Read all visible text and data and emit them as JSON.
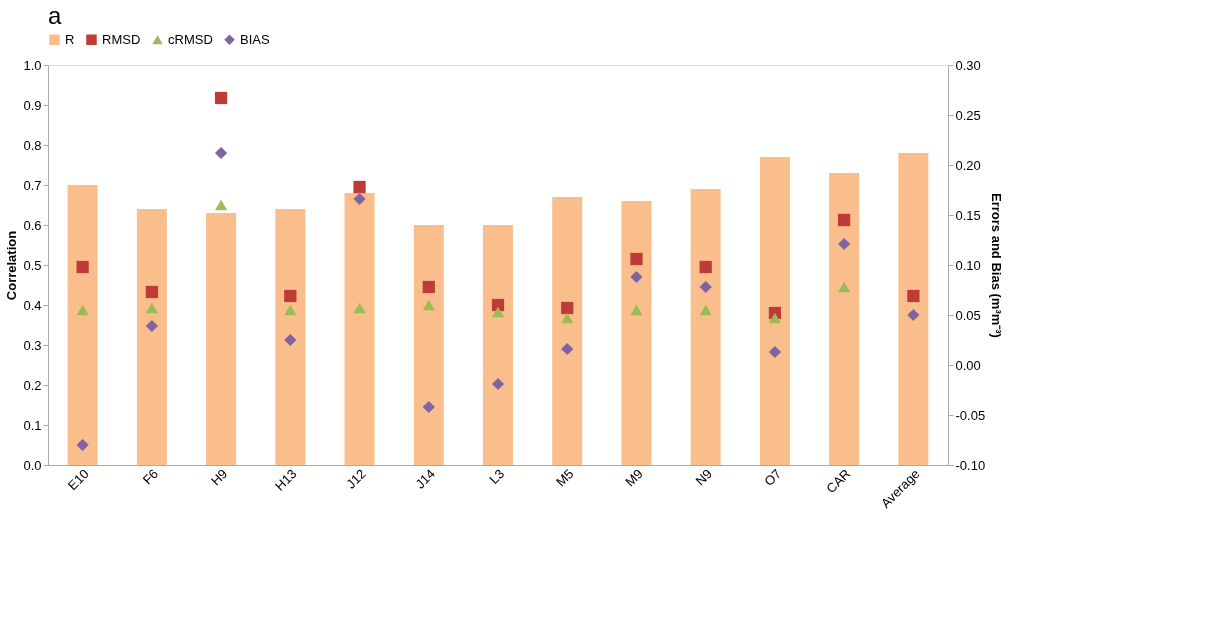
{
  "chart_data": {
    "type": "bar",
    "title": "a",
    "ylabel": "Correlation",
    "y2label": "Errors and Bias (m³m⁻³)",
    "categories": [
      "E10",
      "F6",
      "H9",
      "H13",
      "J12",
      "J14",
      "L3",
      "M5",
      "M9",
      "N9",
      "O7",
      "CAR",
      "Average"
    ],
    "series": [
      {
        "name": "R",
        "color": "#f9be8c",
        "values": [
          0.7,
          0.64,
          0.63,
          0.64,
          0.68,
          0.6,
          0.6,
          0.67,
          0.66,
          0.69,
          0.77,
          0.73,
          0.78
        ]
      },
      {
        "name": "RMSD",
        "type": "scatter",
        "axis": "y2",
        "marker": "square",
        "color": "#be3b37",
        "values": [
          0.098,
          0.073,
          0.267,
          0.069,
          0.178,
          0.078,
          0.06,
          0.057,
          0.106,
          0.098,
          0.052,
          0.145,
          0.069
        ]
      },
      {
        "name": "cRMSD",
        "type": "scatter",
        "axis": "y2",
        "marker": "triangle",
        "color": "#9bbb59",
        "values": [
          0.055,
          0.057,
          0.16,
          0.055,
          0.057,
          0.06,
          0.053,
          0.047,
          0.055,
          0.055,
          0.047,
          0.078,
          null
        ]
      },
      {
        "name": "BIAS",
        "type": "scatter",
        "axis": "y2",
        "marker": "diamond",
        "color": "#8064a2",
        "values": [
          -0.08,
          0.039,
          0.212,
          0.025,
          0.166,
          -0.042,
          -0.019,
          0.016,
          0.088,
          0.078,
          0.013,
          0.121,
          0.05
        ]
      }
    ],
    "ylim": [
      0,
      1
    ],
    "yticks": [
      {
        "value": 0,
        "label": "0.0"
      },
      0.1,
      0.2,
      0.3,
      0.4,
      0.5,
      0.6,
      0.7,
      0.8,
      0.9,
      {
        "value": 1,
        "label": "1.0"
      }
    ],
    "y2lim": [
      -0.1,
      0.3
    ],
    "y2ticks": [
      {
        "value": -0.1,
        "label": "-0.10"
      },
      -0.05,
      {
        "value": 0,
        "label": "0.00"
      },
      0.05,
      {
        "value": 0.1,
        "label": "0.10"
      },
      0.15,
      {
        "value": 0.2,
        "label": "0.20"
      },
      0.25,
      {
        "value": 0.3,
        "label": "0.30"
      }
    ],
    "legend": "top",
    "grid": false
  }
}
